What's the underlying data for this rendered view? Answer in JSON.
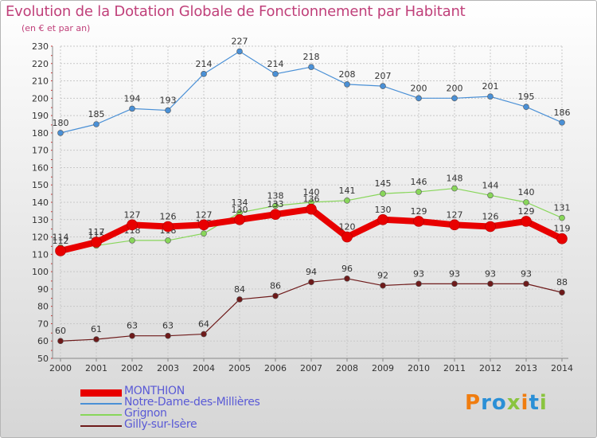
{
  "title": "Evolution de la Dotation Globale de Fonctionnement par Habitant",
  "subtitle": "(en € et par an)",
  "logo": {
    "text": "Proxiti"
  },
  "chart_data": {
    "type": "line",
    "title": "Evolution de la Dotation Globale de Fonctionnement par Habitant",
    "ylabel": "(en € et par an)",
    "x": [
      "2000",
      "2001",
      "2002",
      "2003",
      "2004",
      "2005",
      "2006",
      "2007",
      "2008",
      "2009",
      "2010",
      "2011",
      "2012",
      "2013",
      "2014"
    ],
    "ylim": [
      50,
      230
    ],
    "yticks": [
      50,
      60,
      70,
      80,
      90,
      100,
      110,
      120,
      130,
      140,
      150,
      160,
      170,
      180,
      190,
      200,
      210,
      220,
      230
    ],
    "grid": true,
    "legend_position": "bottom-left",
    "series": [
      {
        "name": "MONTHION",
        "color": "#e80000",
        "values": [
          112,
          117,
          127,
          126,
          127,
          130,
          133,
          136,
          120,
          130,
          129,
          127,
          126,
          129,
          119
        ],
        "labels": [
          "112",
          "117",
          "127",
          "126",
          "127",
          "130",
          "133",
          "136",
          "120",
          "130",
          "129",
          "127",
          "126",
          "129",
          "119"
        ]
      },
      {
        "name": "Notre-Dame-des-Millières",
        "color": "#4a90d6",
        "values": [
          180,
          185,
          194,
          193,
          214,
          227,
          214,
          218,
          208,
          207,
          200,
          200,
          201,
          195,
          186
        ],
        "labels": [
          "180",
          "185",
          "194",
          "193",
          "214",
          "227",
          "214",
          "218",
          "208",
          "207",
          "200",
          "200",
          "201",
          "195",
          "186"
        ]
      },
      {
        "name": "Grignon",
        "color": "#88d65a",
        "values": [
          114,
          115,
          118,
          118,
          122,
          134,
          138,
          140,
          141,
          145,
          146,
          148,
          144,
          140,
          131
        ],
        "labels": [
          "114",
          "115",
          "118",
          "118",
          "122",
          "134",
          "138",
          "140",
          "141",
          "145",
          "146",
          "148",
          "144",
          "140",
          "131"
        ]
      },
      {
        "name": "Gilly-sur-Isère",
        "color": "#6e1a1a",
        "values": [
          60,
          61,
          63,
          63,
          64,
          84,
          86,
          94,
          96,
          92,
          93,
          93,
          93,
          93,
          88
        ],
        "labels": [
          "60",
          "61",
          "63",
          "63",
          "64",
          "84",
          "86",
          "94",
          "96",
          "92",
          "93",
          "93",
          "93",
          "93",
          "88"
        ]
      }
    ]
  }
}
